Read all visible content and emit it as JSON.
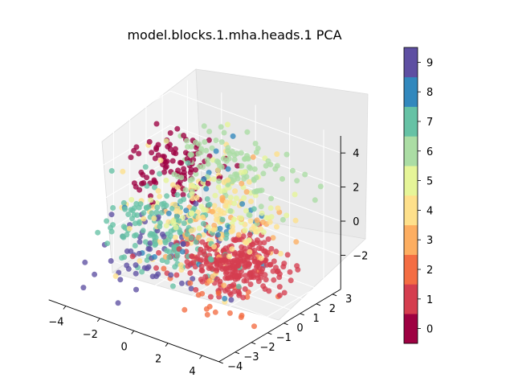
{
  "chart_data": {
    "type": "scatter",
    "projection": "3d",
    "title": "model.blocks.1.mha.heads.1 PCA",
    "xlabel": "",
    "ylabel": "",
    "zlabel": "",
    "grid": true,
    "xlim": [
      -5,
      5
    ],
    "ylim": [
      -4,
      3.5
    ],
    "zlim": [
      -4,
      5
    ],
    "x_ticks": [
      -4,
      -2,
      0,
      2,
      4
    ],
    "x_tick_labels": [
      "−4",
      "−2",
      "0",
      "2",
      "4"
    ],
    "y_ticks": [
      -4,
      -3,
      -2,
      -1,
      0,
      1,
      2,
      3
    ],
    "y_tick_labels": [
      "−4",
      "−3",
      "−2",
      "−1",
      "0",
      "1",
      "2",
      "3"
    ],
    "z_ticks": [
      -2,
      0,
      2,
      4
    ],
    "z_tick_labels": [
      "−2",
      "0",
      "2",
      "4"
    ],
    "colorbar": {
      "colormap": "Spectral",
      "labels": [
        "0",
        "1",
        "2",
        "3",
        "4",
        "5",
        "6",
        "7",
        "8",
        "9"
      ],
      "colors": [
        "#9e0142",
        "#d53e4f",
        "#f46d43",
        "#fdae61",
        "#fee08b",
        "#e6f598",
        "#abdda4",
        "#66c2a5",
        "#3288bd",
        "#5e4fa2"
      ]
    },
    "clusters": [
      {
        "class": 0,
        "cx": -2.8,
        "cy": 1.6,
        "cz": 1.4,
        "sx": 1.1,
        "sy": 0.9,
        "sz": 0.9,
        "n": 110
      },
      {
        "class": 1,
        "cx": 2.2,
        "cy": -0.2,
        "cz": -1.4,
        "sx": 1.4,
        "sy": 0.8,
        "sz": 0.6,
        "n": 300
      },
      {
        "class": 2,
        "cx": 2.6,
        "cy": -1.6,
        "cz": -2.6,
        "sx": 1.2,
        "sy": 1.0,
        "sz": 0.6,
        "n": 22
      },
      {
        "class": 3,
        "cx": 0.8,
        "cy": 0.4,
        "cz": 0.2,
        "sx": 1.4,
        "sy": 1.0,
        "sz": 1.0,
        "n": 40
      },
      {
        "class": 4,
        "cx": 0.0,
        "cy": 0.0,
        "cz": 0.2,
        "sx": 2.0,
        "sy": 1.4,
        "sz": 1.2,
        "n": 120
      },
      {
        "class": 5,
        "cx": 0.6,
        "cy": 0.8,
        "cz": 1.2,
        "sx": 1.8,
        "sy": 1.2,
        "sz": 1.0,
        "n": 70
      },
      {
        "class": 6,
        "cx": 0.4,
        "cy": 1.8,
        "cz": 2.4,
        "sx": 1.6,
        "sy": 0.8,
        "sz": 0.8,
        "n": 110
      },
      {
        "class": 7,
        "cx": -1.2,
        "cy": -0.6,
        "cz": -0.4,
        "sx": 1.6,
        "sy": 1.0,
        "sz": 1.2,
        "n": 160
      },
      {
        "class": 8,
        "cx": 0.2,
        "cy": 0.2,
        "cz": 0.0,
        "sx": 1.8,
        "sy": 1.2,
        "sz": 1.2,
        "n": 30
      },
      {
        "class": 9,
        "cx": -1.6,
        "cy": -1.0,
        "cz": -1.8,
        "sx": 1.4,
        "sy": 1.0,
        "sz": 1.0,
        "n": 60
      }
    ]
  }
}
